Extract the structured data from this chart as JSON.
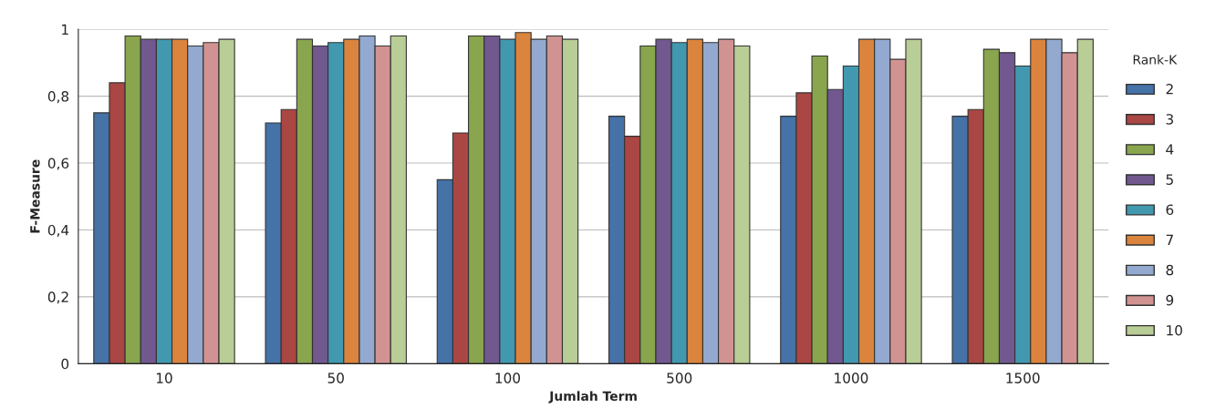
{
  "chart_data": {
    "type": "bar",
    "xlabel": "Jumlah Term",
    "ylabel": "F-Measure",
    "legend_title": "Rank-K",
    "categories": [
      "10",
      "50",
      "100",
      "500",
      "1000",
      "1500"
    ],
    "series": [
      {
        "name": "2",
        "color": "#4572a7",
        "values": [
          0.75,
          0.72,
          0.55,
          0.74,
          0.74,
          0.74
        ]
      },
      {
        "name": "3",
        "color": "#aa4643",
        "values": [
          0.84,
          0.76,
          0.69,
          0.68,
          0.81,
          0.76
        ]
      },
      {
        "name": "4",
        "color": "#89a54e",
        "values": [
          0.98,
          0.97,
          0.98,
          0.95,
          0.92,
          0.94
        ]
      },
      {
        "name": "5",
        "color": "#71588f",
        "values": [
          0.97,
          0.95,
          0.98,
          0.97,
          0.82,
          0.93
        ]
      },
      {
        "name": "6",
        "color": "#4198af",
        "values": [
          0.97,
          0.96,
          0.97,
          0.96,
          0.89,
          0.89
        ]
      },
      {
        "name": "7",
        "color": "#db843d",
        "values": [
          0.97,
          0.97,
          0.99,
          0.97,
          0.97,
          0.97
        ]
      },
      {
        "name": "8",
        "color": "#93a9cf",
        "values": [
          0.95,
          0.98,
          0.97,
          0.96,
          0.97,
          0.97
        ]
      },
      {
        "name": "9",
        "color": "#d19392",
        "values": [
          0.96,
          0.95,
          0.98,
          0.97,
          0.91,
          0.93
        ]
      },
      {
        "name": "10",
        "color": "#b9cd96",
        "values": [
          0.97,
          0.98,
          0.97,
          0.95,
          0.97,
          0.97
        ]
      }
    ],
    "ylim": [
      0,
      1
    ],
    "yticks": [
      0,
      {
        "value": 0.2,
        "label": "0,2"
      },
      {
        "value": 0.4,
        "label": "0,4"
      },
      {
        "value": 0.6,
        "label": "0,6"
      },
      {
        "value": 0.8,
        "label": "0,8"
      },
      1
    ],
    "grid": "y",
    "legend": "right"
  }
}
